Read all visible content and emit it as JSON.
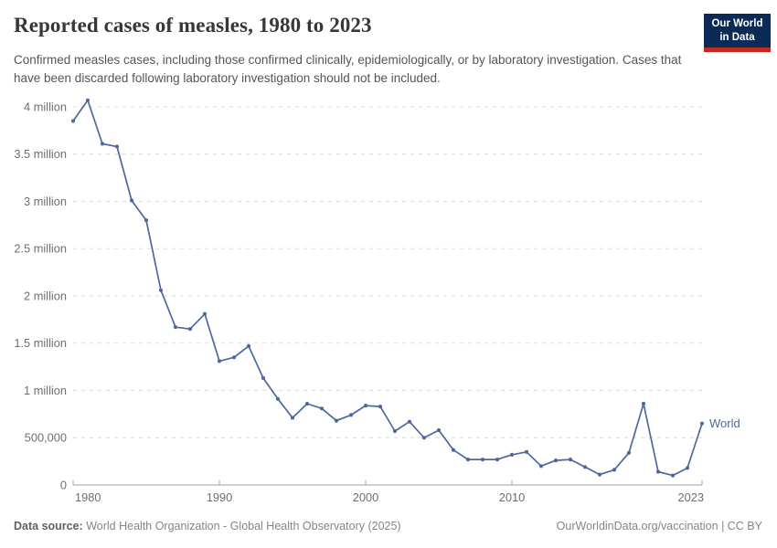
{
  "header": {
    "title": "Reported cases of measles, 1980 to 2023",
    "subtitle_line1": "Confirmed measles cases, including those confirmed clinically, epidemiologically, or by laboratory investigation.",
    "subtitle_line2": "Cases that have been discarded following laboratory investigation should not be included.",
    "logo_line1": "Our World",
    "logo_line2": "in Data",
    "logo_bg_color": "#0b2a56",
    "logo_bar_color": "#c52a20"
  },
  "chart_data": {
    "type": "line",
    "title": "Reported cases of measles, 1980 to 2023",
    "x": [
      1980,
      1981,
      1982,
      1983,
      1984,
      1985,
      1986,
      1987,
      1988,
      1989,
      1990,
      1991,
      1992,
      1993,
      1994,
      1995,
      1996,
      1997,
      1998,
      1999,
      2000,
      2001,
      2002,
      2003,
      2004,
      2005,
      2006,
      2007,
      2008,
      2009,
      2010,
      2011,
      2012,
      2013,
      2014,
      2015,
      2016,
      2017,
      2018,
      2019,
      2020,
      2021,
      2022,
      2023
    ],
    "series": [
      {
        "name": "World",
        "color": "#4b69a0",
        "values": [
          3850000,
          4070000,
          3610000,
          3580000,
          3010000,
          2800000,
          2060000,
          1670000,
          1650000,
          1810000,
          1310000,
          1350000,
          1470000,
          1130000,
          910000,
          710000,
          860000,
          810000,
          680000,
          740000,
          840000,
          830000,
          570000,
          670000,
          500000,
          580000,
          370000,
          270000,
          270000,
          270000,
          320000,
          350000,
          200000,
          260000,
          270000,
          190000,
          110000,
          160000,
          340000,
          860000,
          140000,
          100000,
          180000,
          650000
        ]
      }
    ],
    "xlabel": "",
    "ylabel": "",
    "xlim": [
      1980,
      2023
    ],
    "ylim": [
      0,
      4000000
    ],
    "yticks": [
      {
        "value": 0,
        "label": "0"
      },
      {
        "value": 500000,
        "label": "500,000"
      },
      {
        "value": 1000000,
        "label": "1 million"
      },
      {
        "value": 1500000,
        "label": "1.5 million"
      },
      {
        "value": 2000000,
        "label": "2 million"
      },
      {
        "value": 2500000,
        "label": "2.5 million"
      },
      {
        "value": 3000000,
        "label": "3 million"
      },
      {
        "value": 3500000,
        "label": "3.5 million"
      },
      {
        "value": 4000000,
        "label": "4 million"
      }
    ],
    "xticks": [
      {
        "value": 1980,
        "label": "1980"
      },
      {
        "value": 1990,
        "label": "1990"
      },
      {
        "value": 2000,
        "label": "2000"
      },
      {
        "value": 2010,
        "label": "2010"
      },
      {
        "value": 2023,
        "label": "2023"
      }
    ],
    "grid": "horizontal-dashed",
    "grid_color": "#dcdcdc",
    "axis_color": "#a3a3a3",
    "tick_label_color": "#6e6e6e",
    "legend": "end-of-line label",
    "end_label": "World"
  },
  "footer": {
    "source_label": "Data source:",
    "source_text": "World Health Organization - Global Health Observatory (2025)",
    "right_text": "OurWorldinData.org/vaccination | CC BY"
  }
}
